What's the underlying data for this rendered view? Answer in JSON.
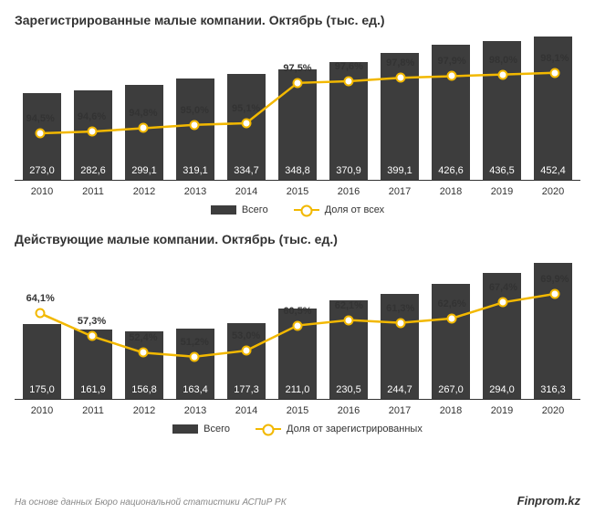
{
  "colors": {
    "bar": "#3d3d3d",
    "line": "#f2b800",
    "marker_fill": "#ffffff",
    "marker_label": "#333333",
    "axis": "#333333"
  },
  "chart1": {
    "title": "Зарегистрированные малые компании. Октябрь (тыс. ед.)",
    "categories": [
      "2010",
      "2011",
      "2012",
      "2013",
      "2014",
      "2015",
      "2016",
      "2017",
      "2018",
      "2019",
      "2020"
    ],
    "bars": [
      273.0,
      282.6,
      299.1,
      319.1,
      334.7,
      348.8,
      370.9,
      399.1,
      426.6,
      436.5,
      452.4
    ],
    "bar_labels": [
      "273,0",
      "282,6",
      "299,1",
      "319,1",
      "334,7",
      "348,8",
      "370,9",
      "399,1",
      "426,6",
      "436,5",
      "452,4"
    ],
    "bar_max": 460,
    "line_pct": [
      94.5,
      94.6,
      94.8,
      95.0,
      95.1,
      97.5,
      97.6,
      97.8,
      97.9,
      98.0,
      98.1
    ],
    "line_labels": [
      "94,5%",
      "94,6%",
      "94,8%",
      "95,0%",
      "95,1%",
      "97,5%",
      "97,6%",
      "97,8%",
      "97,9%",
      "98,0%",
      "98,1%"
    ],
    "line_ymin": 92,
    "line_ymax": 100,
    "legend_bar": "Всего",
    "legend_line": "Доля от всех"
  },
  "chart2": {
    "title": "Действующие малые компании. Октябрь (тыс. ед.)",
    "categories": [
      "2010",
      "2011",
      "2012",
      "2013",
      "2014",
      "2015",
      "2016",
      "2017",
      "2018",
      "2019",
      "2020"
    ],
    "bars": [
      175.0,
      161.9,
      156.8,
      163.4,
      177.3,
      211.0,
      230.5,
      244.7,
      267.0,
      294.0,
      316.3
    ],
    "bar_labels": [
      "175,0",
      "161,9",
      "156,8",
      "163,4",
      "177,3",
      "211,0",
      "230,5",
      "244,7",
      "267,0",
      "294,0",
      "316,3"
    ],
    "bar_max": 340,
    "line_pct": [
      64.1,
      57.3,
      52.4,
      51.2,
      53.0,
      60.5,
      62.1,
      61.3,
      62.6,
      67.4,
      69.9
    ],
    "line_labels": [
      "64,1%",
      "57,3%",
      "52,4%",
      "51,2%",
      "53,0%",
      "60,5%",
      "62,1%",
      "61,3%",
      "62,6%",
      "67,4%",
      "69,9%"
    ],
    "line_ymin": 40,
    "line_ymax": 80,
    "legend_bar": "Всего",
    "legend_line": "Доля от зарегистрированных"
  },
  "footer": {
    "source": "На основе данных Бюро национальной статистики АСПиР РК",
    "brand": "Finprom.kz"
  }
}
